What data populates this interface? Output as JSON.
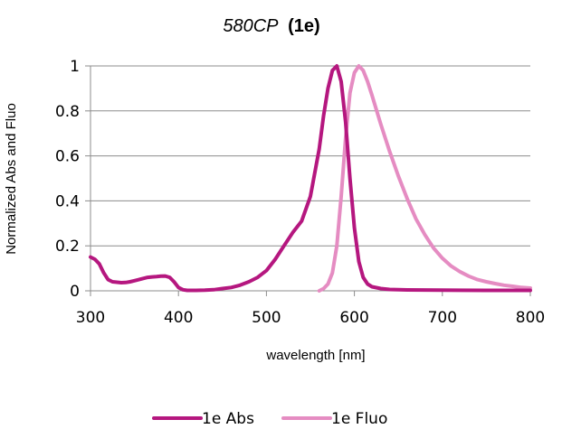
{
  "chart_data": {
    "type": "line",
    "title_italic": "580CP",
    "title_bold": "(1e)",
    "xlabel": "wavelength [nm]",
    "ylabel": "Normalized Abs and Fluo",
    "xlim": [
      300,
      800
    ],
    "ylim": [
      0,
      1
    ],
    "x_ticks": [
      "300",
      "400",
      "500",
      "600",
      "700",
      "800"
    ],
    "y_ticks": [
      "0",
      "0.2",
      "0.4",
      "0.6",
      "0.8",
      "1"
    ],
    "grid": "horizontal",
    "legend_position": "bottom",
    "series": [
      {
        "name": "1e Abs",
        "color": "#b5177f",
        "x": [
          300,
          305,
          310,
          315,
          320,
          325,
          330,
          335,
          340,
          345,
          350,
          355,
          360,
          365,
          370,
          375,
          380,
          385,
          390,
          395,
          400,
          405,
          410,
          420,
          430,
          440,
          450,
          460,
          470,
          480,
          490,
          500,
          510,
          520,
          530,
          540,
          550,
          560,
          565,
          570,
          575,
          580,
          585,
          590,
          595,
          600,
          605,
          610,
          615,
          620,
          630,
          640,
          660,
          700,
          750,
          800
        ],
        "y": [
          0.15,
          0.14,
          0.12,
          0.08,
          0.05,
          0.04,
          0.038,
          0.036,
          0.037,
          0.04,
          0.045,
          0.05,
          0.055,
          0.06,
          0.062,
          0.063,
          0.065,
          0.066,
          0.06,
          0.04,
          0.015,
          0.005,
          0.002,
          0.002,
          0.003,
          0.005,
          0.01,
          0.015,
          0.025,
          0.04,
          0.06,
          0.09,
          0.14,
          0.2,
          0.26,
          0.31,
          0.42,
          0.63,
          0.78,
          0.9,
          0.98,
          1.0,
          0.93,
          0.75,
          0.5,
          0.28,
          0.13,
          0.06,
          0.03,
          0.018,
          0.01,
          0.006,
          0.004,
          0.003,
          0.002,
          0.002
        ]
      },
      {
        "name": "1e Fluo",
        "color": "#e58cc2",
        "x": [
          560,
          565,
          570,
          575,
          580,
          585,
          590,
          595,
          600,
          605,
          610,
          615,
          620,
          630,
          640,
          650,
          660,
          670,
          680,
          690,
          700,
          710,
          720,
          730,
          740,
          750,
          760,
          770,
          780,
          790,
          800
        ],
        "y": [
          0.0,
          0.01,
          0.03,
          0.08,
          0.2,
          0.42,
          0.68,
          0.88,
          0.97,
          1.0,
          0.98,
          0.93,
          0.87,
          0.74,
          0.62,
          0.51,
          0.41,
          0.32,
          0.25,
          0.19,
          0.145,
          0.11,
          0.085,
          0.065,
          0.05,
          0.04,
          0.032,
          0.025,
          0.02,
          0.015,
          0.012
        ]
      }
    ]
  }
}
